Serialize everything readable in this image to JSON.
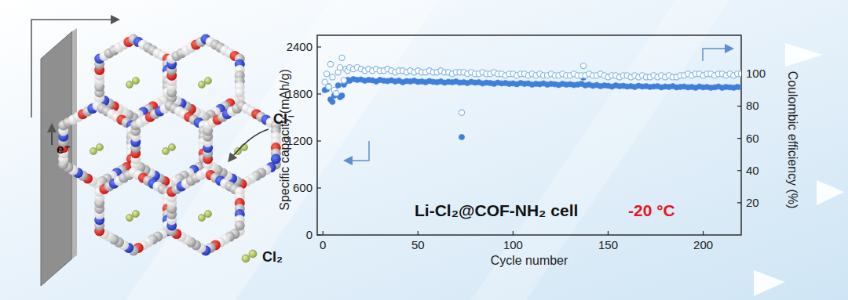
{
  "chart_data": {
    "type": "scatter",
    "x_label": "Cycle number",
    "y_label": "Specific capacity (mAh/g)",
    "y2_label": "Coulombic efficiency (%)",
    "annotations": [
      {
        "text": "Li-Cl₂@COF-NH₂ cell"
      },
      {
        "text": "-20 °C",
        "color": "#e8141c"
      },
      {
        "text": "e⁻"
      },
      {
        "text": "Cl⁻"
      },
      {
        "text": "Cl₂"
      }
    ],
    "xlim": [
      -3,
      220
    ],
    "xticks": [
      0,
      50,
      100,
      150,
      200
    ],
    "ylim": [
      0,
      2550
    ],
    "yticks": [
      0,
      600,
      1200,
      1800,
      2400
    ],
    "y2lim": [
      0,
      124
    ],
    "y2ticks": [
      20,
      40,
      60,
      80,
      100
    ],
    "grid": false,
    "x": [
      1,
      2,
      3,
      4,
      5,
      6,
      7,
      8,
      9,
      10,
      11,
      12,
      13,
      14,
      16,
      18,
      20,
      22,
      24,
      26,
      28,
      30,
      32,
      34,
      36,
      38,
      40,
      42,
      44,
      46,
      48,
      50,
      52,
      54,
      56,
      58,
      60,
      62,
      64,
      66,
      68,
      70,
      72,
      73,
      74,
      76,
      78,
      80,
      82,
      84,
      86,
      88,
      90,
      92,
      94,
      96,
      98,
      100,
      102,
      104,
      106,
      108,
      110,
      112,
      114,
      116,
      118,
      120,
      122,
      124,
      126,
      128,
      130,
      132,
      134,
      136,
      137,
      138,
      140,
      142,
      144,
      146,
      148,
      150,
      152,
      154,
      156,
      158,
      160,
      162,
      164,
      166,
      168,
      170,
      172,
      174,
      176,
      178,
      180,
      182,
      184,
      186,
      188,
      190,
      192,
      194,
      196,
      198,
      200,
      202,
      204,
      206,
      208,
      210,
      212,
      214,
      216,
      218,
      220
    ],
    "series": [
      {
        "color": "#3f7fdc",
        "marker": "circle",
        "values": [
          1850,
          1860,
          1900,
          1730,
          1700,
          1780,
          1800,
          1910,
          1760,
          1780,
          1920,
          1960,
          1980,
          1970,
          1990,
          1980,
          1985,
          1970,
          1980,
          1975,
          1960,
          1980,
          1970,
          1965,
          1975,
          1960,
          1970,
          1950,
          1965,
          1960,
          1970,
          1955,
          1960,
          1950,
          1965,
          1955,
          1950,
          1960,
          1945,
          1955,
          1950,
          1960,
          1945,
          1250,
          1950,
          1940,
          1955,
          1945,
          1950,
          1935,
          1945,
          1940,
          1930,
          1945,
          1935,
          1940,
          1930,
          1935,
          1925,
          1940,
          1930,
          1935,
          1920,
          1930,
          1925,
          1935,
          1920,
          1930,
          1925,
          1915,
          1930,
          1920,
          1925,
          1915,
          1920,
          1930,
          2010,
          1910,
          1920,
          1905,
          1915,
          1900,
          1910,
          1905,
          1895,
          1910,
          1900,
          1905,
          1895,
          1900,
          1890,
          1905,
          1895,
          1900,
          1890,
          1895,
          1900,
          1885,
          1895,
          1890,
          1900,
          1885,
          1890,
          1895,
          1885,
          1890,
          1880,
          1895,
          1885,
          1890,
          1880,
          1885,
          1895,
          1880,
          1890,
          1885,
          1880,
          1890,
          1885
        ]
      },
      {
        "color": "#7fb2e8",
        "marker": "open-circle",
        "axis": "y2",
        "values": [
          95,
          100,
          92,
          106,
          98,
          90,
          88,
          101,
          104,
          110,
          96,
          103,
          102,
          104,
          103,
          104,
          103,
          102,
          103,
          102,
          103,
          102,
          102,
          103,
          102,
          101,
          102,
          102,
          101,
          102,
          101,
          102,
          101,
          101,
          102,
          101,
          101,
          102,
          101,
          101,
          100,
          101,
          101,
          76,
          101,
          100,
          101,
          100,
          100,
          101,
          100,
          100,
          101,
          100,
          100,
          99,
          100,
          100,
          99,
          100,
          100,
          99,
          100,
          99,
          100,
          99,
          99,
          100,
          99,
          99,
          100,
          99,
          99,
          100,
          99,
          99,
          105,
          99,
          100,
          99,
          99,
          100,
          99,
          98,
          99,
          99,
          98,
          99,
          99,
          98,
          99,
          98,
          99,
          98,
          98,
          99,
          98,
          99,
          98,
          99,
          98,
          98,
          99,
          99,
          100,
          99,
          100,
          100,
          99,
          100,
          100,
          99,
          100,
          100,
          99,
          100,
          99,
          100,
          100
        ]
      }
    ]
  }
}
